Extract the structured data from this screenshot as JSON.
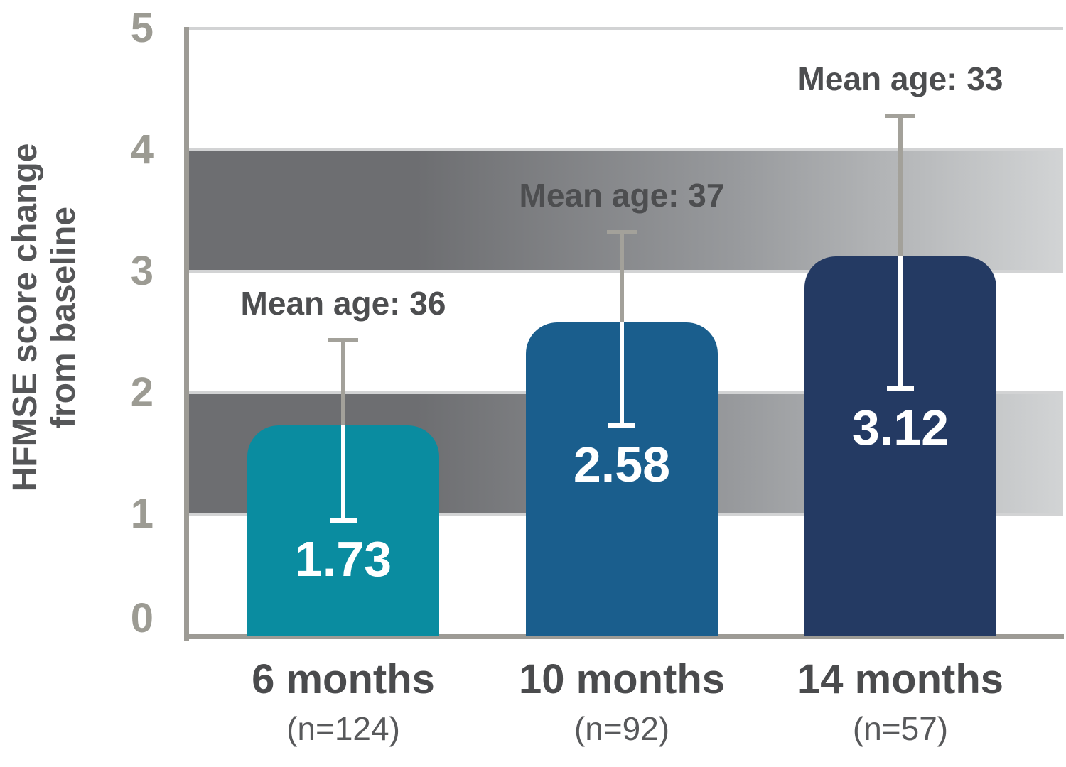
{
  "chart_data": {
    "type": "bar",
    "title": "",
    "ylabel": "HFMSE score change from baseline",
    "ylabel_lines": [
      "HFMSE score change",
      "from baseline"
    ],
    "ylim": [
      0,
      5
    ],
    "yticks": [
      0,
      1,
      2,
      3,
      4,
      5
    ],
    "ytick_labels": [
      "0",
      "1",
      "2",
      "3",
      "4",
      "5"
    ],
    "grid": "off",
    "legend": "none",
    "categories": [
      "6 months",
      "10 months",
      "14 months"
    ],
    "category_sublabels": [
      "(n=124)",
      "(n=92)",
      "(n=57)"
    ],
    "n_values": [
      124,
      92,
      57
    ],
    "values": [
      1.73,
      2.58,
      3.12
    ],
    "value_labels": [
      "1.73",
      "2.58",
      "3.12"
    ],
    "error_low": [
      0.97,
      1.75,
      2.05
    ],
    "error_high": [
      2.43,
      3.32,
      4.28
    ],
    "annotations": [
      "Mean age: 36",
      "Mean age: 37",
      "Mean age: 33"
    ],
    "mean_ages": [
      36,
      37,
      33
    ],
    "reference_bands": [
      {
        "from": 1,
        "to": 2
      },
      {
        "from": 3,
        "to": 4
      }
    ],
    "colors": {
      "bars": [
        "#0A8CA0",
        "#1A5E8D",
        "#243A63"
      ],
      "band_dark": "#6D6E71",
      "band_mid": "#97999C",
      "band_light": "#D2D4D5",
      "band_edge": "#D2D3D4",
      "plot_top_line": "#D2D3D4",
      "axis": "#9D9B95",
      "tick_label": "#9C9B93",
      "axis_title": "#555658",
      "category_label": "#4A4B4D",
      "sublabel": "#58595B",
      "annotation": "#4D4E50",
      "error_bar_gray": "#A3A19A",
      "error_bar_white": "#FFFFFF",
      "value_label": "#FFFFFF"
    }
  }
}
